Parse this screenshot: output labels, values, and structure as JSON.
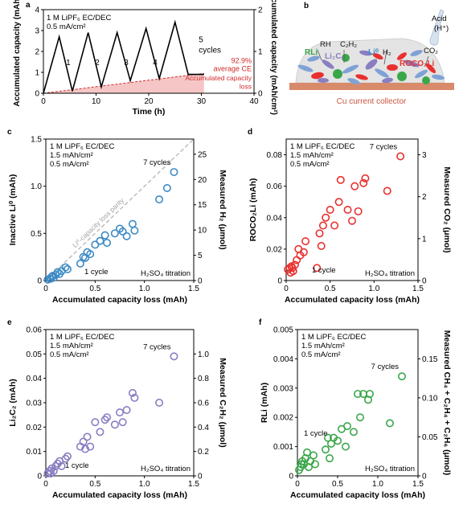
{
  "chart_data": [
    {
      "panel": "a",
      "type": "line",
      "xlabel": "Time (h)",
      "ylabel": "Accumulated capacity (mAh)",
      "ylabel_right": "Accumulated capacity (mAh/cm²)",
      "xlim": [
        0,
        40
      ],
      "ylim": [
        0,
        4
      ],
      "ylim_right": [
        0,
        2
      ],
      "xticks": [
        0,
        10,
        20,
        30,
        40
      ],
      "yticks": [
        0,
        1,
        2,
        3,
        4
      ],
      "yticks_right": [
        0,
        1,
        2
      ],
      "legend": [
        "1 M LiPF₆ EC/DEC",
        "0.5 mA/cm²"
      ],
      "series": [
        {
          "x": [
            0,
            3,
            5.5,
            8.5,
            11,
            14,
            16.5,
            19.5,
            22,
            25,
            27.5,
            30.5
          ],
          "y": [
            0,
            2.7,
            0.1,
            2.9,
            0.3,
            2.9,
            0.6,
            3.1,
            0.7,
            3.4,
            0.9,
            0.9
          ]
        },
        {
          "x": [
            0,
            30.5
          ],
          "y": [
            0,
            0.95
          ]
        }
      ],
      "annotations": {
        "cycle_labels": [
          "1",
          "2",
          "3",
          "4",
          "5"
        ],
        "cycles": "cycles",
        "ce_value": "92.9%",
        "ce_label": "average CE",
        "loss_label": "Accumulated capacity loss"
      }
    },
    {
      "panel": "c",
      "type": "scatter",
      "xlabel": "Accumulated capacity loss (mAh)",
      "ylabel": "Inactive Li⁰ (mAh)",
      "ylabel_right": "Measured H₂ (μmol)",
      "xlim": [
        0,
        1.5
      ],
      "ylim": [
        0,
        1.5
      ],
      "ylim_right": [
        0,
        28
      ],
      "xticks": [
        0,
        0.5,
        1.0,
        1.5
      ],
      "yticks": [
        0,
        0.5,
        1.0,
        1.5
      ],
      "yticks_right": [
        0,
        5,
        10,
        15,
        20,
        25
      ],
      "x": [
        0.02,
        0.04,
        0.05,
        0.06,
        0.07,
        0.08,
        0.1,
        0.12,
        0.14,
        0.16,
        0.2,
        0.22,
        0.35,
        0.38,
        0.4,
        0.42,
        0.45,
        0.5,
        0.55,
        0.6,
        0.62,
        0.7,
        0.75,
        0.78,
        0.82,
        0.88,
        0.9,
        1.15,
        1.23,
        1.3
      ],
      "y": [
        0.01,
        0.02,
        0.02,
        0.04,
        0.05,
        0.03,
        0.06,
        0.09,
        0.07,
        0.1,
        0.14,
        0.12,
        0.18,
        0.25,
        0.24,
        0.3,
        0.28,
        0.38,
        0.42,
        0.48,
        0.4,
        0.5,
        0.55,
        0.52,
        0.47,
        0.6,
        0.53,
        0.86,
        0.98,
        1.15
      ],
      "labels": {
        "first": "1 cycle",
        "last": "7 cycles",
        "method": "H₂SO₄ titration",
        "parity": "Li⁰-capacity loss parity"
      },
      "legend": [
        "1 M LiPF₆ EC/DEC",
        "1.5 mAh/cm²",
        "0.5 mA/cm²"
      ]
    },
    {
      "panel": "d",
      "type": "scatter",
      "xlabel": "Accumulated capacity loss (mAh)",
      "ylabel": "ROCO₂Li (mAh)",
      "ylabel_right": "Measured CO₂ (μmol)",
      "xlim": [
        0,
        1.5
      ],
      "ylim": [
        0,
        0.09
      ],
      "ylim_right": [
        0,
        3.375
      ],
      "xticks": [
        0,
        0.5,
        1.0,
        1.5
      ],
      "yticks": [
        0,
        0.02,
        0.04,
        0.06,
        0.08
      ],
      "yticks_right": [
        0,
        1,
        2,
        3
      ],
      "x": [
        0.02,
        0.04,
        0.05,
        0.06,
        0.07,
        0.08,
        0.1,
        0.12,
        0.14,
        0.16,
        0.2,
        0.22,
        0.35,
        0.38,
        0.4,
        0.42,
        0.45,
        0.5,
        0.55,
        0.6,
        0.62,
        0.7,
        0.75,
        0.78,
        0.82,
        0.88,
        0.9,
        1.15,
        1.3
      ],
      "y": [
        0.007,
        0.008,
        0.005,
        0.009,
        0.008,
        0.006,
        0.01,
        0.013,
        0.02,
        0.016,
        0.018,
        0.025,
        0.008,
        0.03,
        0.022,
        0.035,
        0.04,
        0.045,
        0.035,
        0.05,
        0.064,
        0.045,
        0.038,
        0.06,
        0.044,
        0.062,
        0.065,
        0.057,
        0.079
      ],
      "labels": {
        "first": "1 cycle",
        "last": "7 cycles",
        "method": "H₂SO₄ titration"
      },
      "legend": [
        "1 M LiPF₆ EC/DEC",
        "1.5 mAh/cm²",
        "0.5 mA/cm²"
      ]
    },
    {
      "panel": "e",
      "type": "scatter",
      "xlabel": "Accumulated capacity loss (mAh)",
      "ylabel": "Li₂C₂ (mAh)",
      "ylabel_right": "Measured C₂H₂ (μmol)",
      "xlim": [
        0,
        1.5
      ],
      "ylim": [
        0,
        0.06
      ],
      "ylim_right": [
        0,
        1.2
      ],
      "xticks": [
        0,
        0.5,
        1.0,
        1.5
      ],
      "yticks": [
        0,
        0.01,
        0.02,
        0.03,
        0.04,
        0.05,
        0.06
      ],
      "yticks_right": [
        0,
        0.2,
        0.4,
        0.6,
        0.8,
        1.0
      ],
      "x": [
        0.02,
        0.04,
        0.05,
        0.06,
        0.08,
        0.1,
        0.12,
        0.14,
        0.16,
        0.2,
        0.22,
        0.35,
        0.38,
        0.4,
        0.42,
        0.45,
        0.5,
        0.55,
        0.6,
        0.62,
        0.7,
        0.75,
        0.78,
        0.82,
        0.88,
        0.9,
        1.15,
        1.3
      ],
      "y": [
        0.001,
        0.002,
        0.001,
        0.003,
        0.002,
        0.004,
        0.005,
        0.006,
        0.004,
        0.007,
        0.008,
        0.012,
        0.014,
        0.011,
        0.016,
        0.012,
        0.022,
        0.018,
        0.023,
        0.024,
        0.021,
        0.026,
        0.022,
        0.027,
        0.034,
        0.032,
        0.03,
        0.049
      ],
      "labels": {
        "first": "1 cycle",
        "last": "7 cycles",
        "method": "H₂SO₄ titration"
      },
      "legend": [
        "1 M LiPF₆ EC/DEC",
        "1.5 mAh/cm²",
        "0.5 mA/cm²"
      ]
    },
    {
      "panel": "f",
      "type": "scatter",
      "xlabel": "Accumulated capacity loss (mAh)",
      "ylabel": "RLi (mAh)",
      "ylabel_right": "Measured CH₄ + C₂H₄ + C₂H₆ (μmol)",
      "xlim": [
        0,
        1.5
      ],
      "ylim": [
        0,
        0.005
      ],
      "ylim_right": [
        0,
        0.1875
      ],
      "xticks": [
        0,
        0.5,
        1.0,
        1.5
      ],
      "yticks": [
        0,
        0.001,
        0.002,
        0.003,
        0.004,
        0.005
      ],
      "yticks_right": [
        0,
        0.05,
        0.1,
        0.15
      ],
      "x": [
        0.02,
        0.04,
        0.05,
        0.06,
        0.08,
        0.1,
        0.12,
        0.14,
        0.16,
        0.2,
        0.22,
        0.35,
        0.38,
        0.4,
        0.42,
        0.45,
        0.5,
        0.55,
        0.6,
        0.62,
        0.7,
        0.75,
        0.78,
        0.82,
        0.88,
        0.9,
        1.15,
        1.3
      ],
      "y": [
        0.0002,
        0.0003,
        0.0004,
        0.0005,
        0.0004,
        0.0006,
        0.0008,
        0.0003,
        0.0005,
        0.0007,
        0.0004,
        0.0009,
        0.0013,
        0.0006,
        0.0011,
        0.0013,
        0.0012,
        0.0016,
        0.001,
        0.0017,
        0.0015,
        0.0028,
        0.002,
        0.0028,
        0.0026,
        0.0028,
        0.0018,
        0.0034
      ],
      "labels": {
        "first": "1 cycle",
        "last": "7 cycles",
        "method": "H₂SO₄ titration"
      },
      "legend": [
        "1 M LiPF₆ EC/DEC",
        "1.5 mAh/cm²",
        "0.5 mA/cm²"
      ]
    }
  ],
  "schematic": {
    "panel": "b",
    "labels": [
      "RLi",
      "RH",
      "C₂H₂",
      "Li₂C₂",
      "Li⁰",
      "H₂",
      "ROCO₂Li",
      "CO₂",
      "Acid",
      "(H⁺)"
    ],
    "collector": "Cu current collector"
  },
  "colors": {
    "c": "#3d8bc6",
    "d": "#e8312f",
    "e": "#8a7ec2",
    "f": "#3aa64a",
    "loss_fill": "#f6c6c6",
    "ce_text": "#d22b2b",
    "collector": "#d88b6a",
    "sei": "#e4e4e4"
  },
  "panel_letters": [
    "a",
    "b",
    "c",
    "d",
    "e",
    "f"
  ]
}
